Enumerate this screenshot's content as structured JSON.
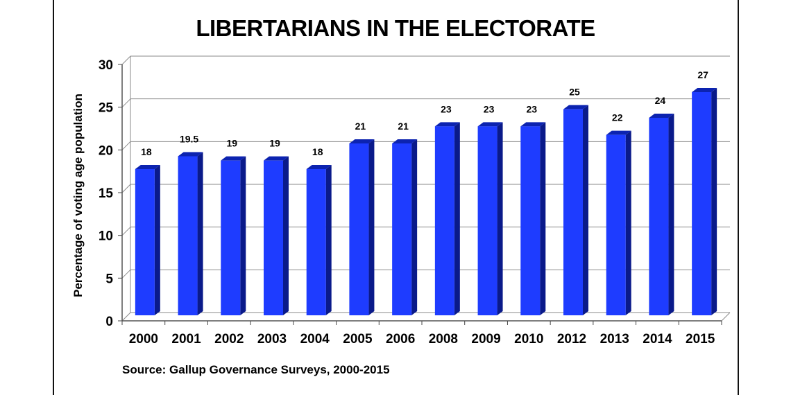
{
  "title": "LIBERTARIANS IN THE ELECTORATE",
  "source": "Source: Gallup Governance Surveys, 2000-2015",
  "chart_data": {
    "type": "bar",
    "title": "LIBERTARIANS IN THE ELECTORATE",
    "xlabel": "",
    "ylabel": "Percentage of voting age population",
    "categories": [
      "2000",
      "2001",
      "2002",
      "2003",
      "2004",
      "2005",
      "2006",
      "2008",
      "2009",
      "2010",
      "2012",
      "2013",
      "2014",
      "2015"
    ],
    "values": [
      18,
      19.5,
      19,
      19,
      18,
      21,
      21,
      23,
      23,
      23,
      25,
      22,
      24,
      27
    ],
    "data_labels": [
      "18",
      "19.5",
      "19",
      "19",
      "18",
      "21",
      "21",
      "23",
      "23",
      "23",
      "25",
      "22",
      "24",
      "27"
    ],
    "ylim": [
      0,
      30
    ],
    "yticks": [
      0,
      5,
      10,
      15,
      20,
      25,
      30
    ],
    "ytick_labels": [
      "0",
      "5",
      "10",
      "15",
      "20",
      "25",
      "30"
    ],
    "grid": true,
    "legend": "none",
    "bar_color": "#1e3cff",
    "bar_side_color": "#0a1a8a",
    "bar_top_color": "#0c23b0"
  }
}
